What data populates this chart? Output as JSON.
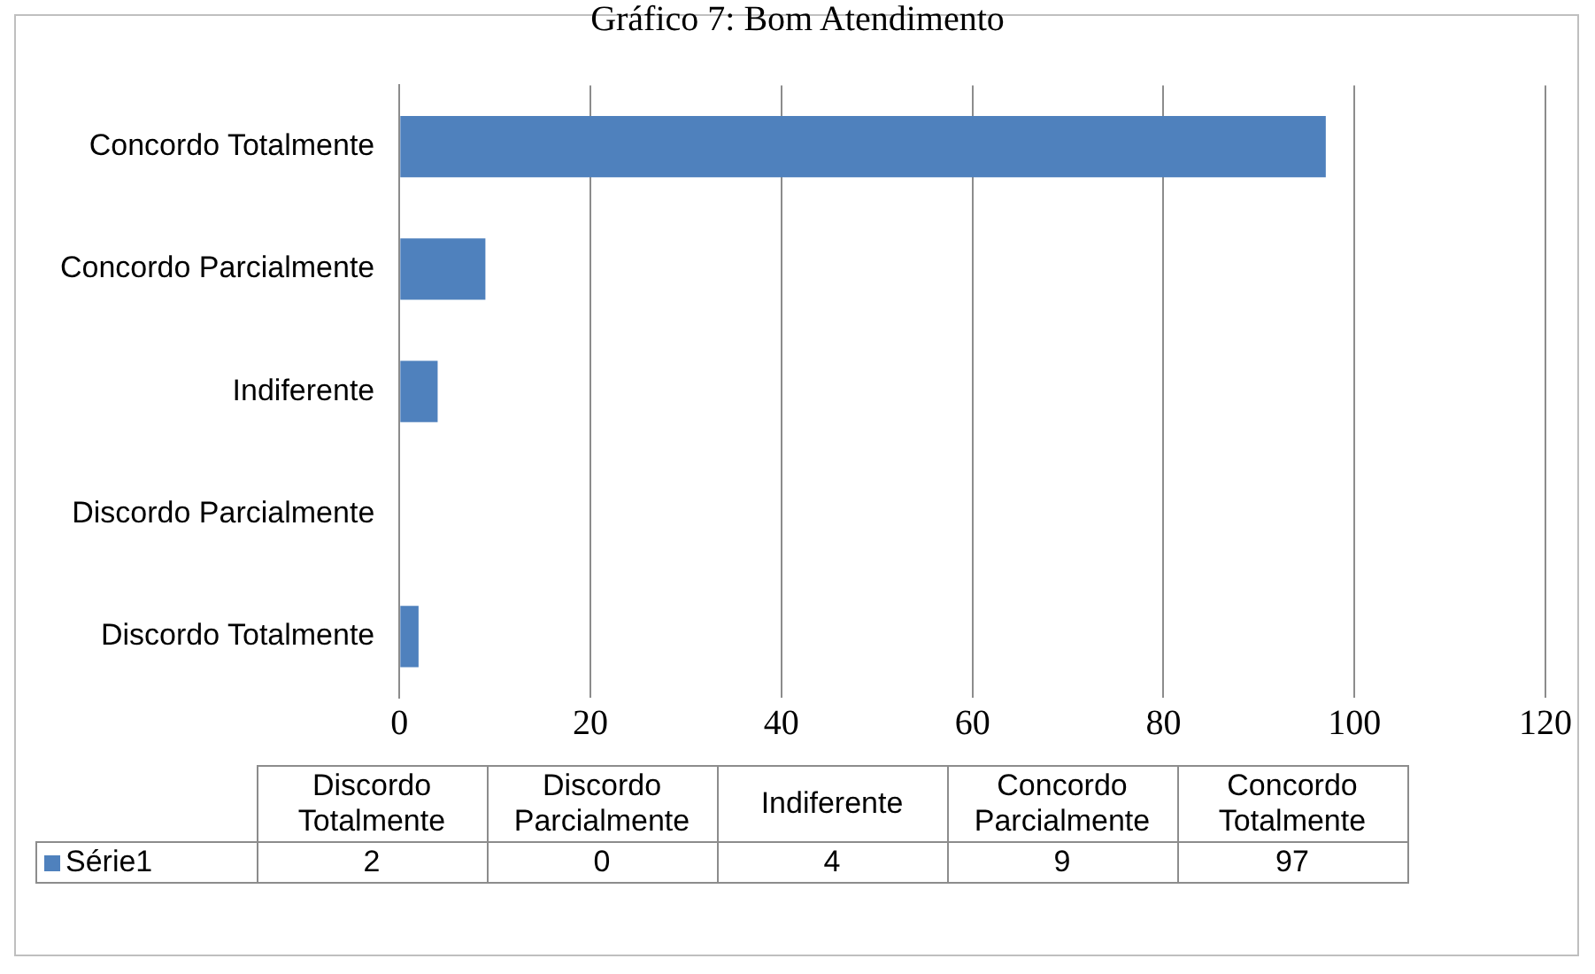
{
  "chart_data": {
    "type": "bar",
    "orientation": "horizontal",
    "title": "Gráfico 7: Bom Atendimento",
    "categories": [
      "Concordo Totalmente",
      "Concordo Parcialmente",
      "Indiferente",
      "Discordo Parcialmente",
      "Discordo Totalmente"
    ],
    "series": [
      {
        "name": "Série1",
        "color": "#4f81bd",
        "values": [
          97,
          9,
          4,
          0,
          2
        ]
      }
    ],
    "xlim": [
      0,
      120
    ],
    "xticks": [
      0,
      20,
      40,
      60,
      80,
      100,
      120
    ],
    "grid": "x",
    "legend": "bottom",
    "annotations": [
      "2",
      "0",
      "4",
      "9",
      "97"
    ]
  }
}
